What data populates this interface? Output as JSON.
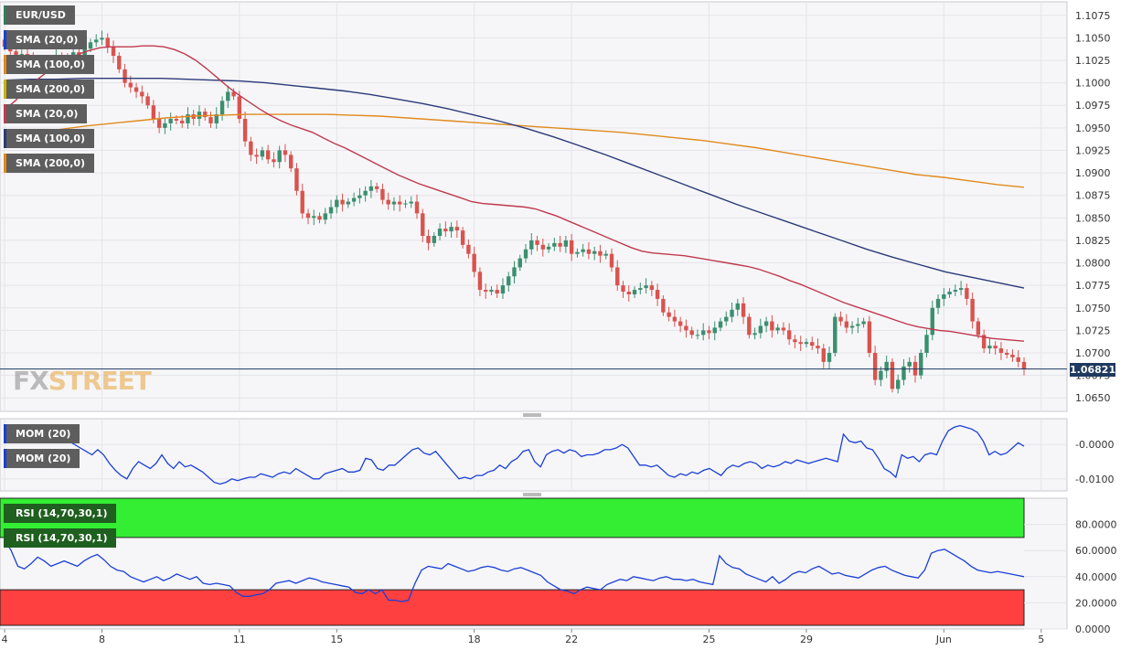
{
  "colors": {
    "bull": "#3b8f6f",
    "bear": "#d9534f",
    "sma20": "#c0394f",
    "sma100": "#2b3a78",
    "sma200": "#e08a1e",
    "mom": "#1a3fd6",
    "rsi": "#1a3fd6",
    "overbought": "#33ee33",
    "oversold": "#ff4040",
    "price_line": "#1f3a5f"
  },
  "price_tag": "1.06821",
  "logo": {
    "fx": "FX",
    "street": "STREET"
  },
  "legends": [
    {
      "label": "EUR/USD",
      "color": "#2e7d5b"
    },
    {
      "label": "SMA (20,0)",
      "color": "#1a3fd6"
    },
    {
      "label": "SMA (100,0)",
      "color": "#e08a1e"
    },
    {
      "label": "SMA (200,0)",
      "color": "#c8b400"
    },
    {
      "label": "SMA (20,0)",
      "color": "#c0394f"
    },
    {
      "label": "SMA (100,0)",
      "color": "#2b3a78"
    },
    {
      "label": "SMA (200,0)",
      "color": "#e08a1e"
    }
  ],
  "mom_legends": [
    {
      "label": "MOM (20)",
      "color": "#1a3fd6"
    },
    {
      "label": "MOM (20)",
      "color": "#1a3fd6"
    }
  ],
  "rsi_legends": [
    {
      "label": "RSI (14,70,30,1)",
      "color": "#1f5f1f"
    },
    {
      "label": "RSI (14,70,30,1)",
      "color": "#1f5f1f"
    }
  ],
  "chart_data": {
    "type": "candlestick",
    "symbol": "EUR/USD",
    "current_price": 1.06821,
    "price_axis": {
      "ylim": [
        1.0635,
        1.109
      ],
      "ticks": [
        "1.1075",
        "1.1050",
        "1.1025",
        "1.1000",
        "1.0975",
        "1.0950",
        "1.0925",
        "1.0900",
        "1.0875",
        "1.0850",
        "1.0825",
        "1.0800",
        "1.0775",
        "1.0750",
        "1.0725",
        "1.0700",
        "1.0675",
        "1.0650"
      ]
    },
    "x_ticks": [
      {
        "label": "4",
        "bar": 0
      },
      {
        "label": "8",
        "bar": 17
      },
      {
        "label": "11",
        "bar": 41
      },
      {
        "label": "15",
        "bar": 58
      },
      {
        "label": "18",
        "bar": 82
      },
      {
        "label": "22",
        "bar": 99
      },
      {
        "label": "25",
        "bar": 123
      },
      {
        "label": "29",
        "bar": 140
      },
      {
        "label": "Jun",
        "bar": 164
      },
      {
        "label": "5",
        "bar": 181
      }
    ],
    "grid": true,
    "close": [
      1.104,
      1.1035,
      1.1028,
      1.1032,
      1.103,
      1.1025,
      1.102,
      1.1018,
      1.1022,
      1.103,
      1.1027,
      1.1025,
      1.1034,
      1.103,
      1.1038,
      1.1045,
      1.1048,
      1.105,
      1.104,
      1.103,
      1.1015,
      1.1,
      1.0995,
      1.099,
      1.0985,
      1.0975,
      1.096,
      1.095,
      1.0955,
      1.096,
      1.0958,
      1.0955,
      1.0965,
      1.096,
      1.0968,
      1.0962,
      1.0955,
      1.0965,
      1.098,
      1.099,
      1.0985,
      1.096,
      1.0935,
      1.092,
      1.0918,
      1.0925,
      1.0915,
      1.0912,
      1.0925,
      1.092,
      1.0905,
      1.088,
      1.0855,
      1.085,
      1.0852,
      1.0848,
      1.0855,
      1.0862,
      1.087,
      1.0865,
      1.0868,
      1.0872,
      1.0875,
      1.088,
      1.0885,
      1.0882,
      1.087,
      1.0865,
      1.0868,
      1.0865,
      1.0866,
      1.0868,
      1.0855,
      1.083,
      1.0822,
      1.083,
      1.0838,
      1.0835,
      1.084,
      1.0836,
      1.082,
      1.081,
      1.079,
      1.077,
      1.0768,
      1.077,
      1.0766,
      1.0775,
      1.0785,
      1.0795,
      1.0805,
      1.0815,
      1.0825,
      1.082,
      1.0815,
      1.0818,
      1.0822,
      1.0818,
      1.0825,
      1.081,
      1.0812,
      1.0815,
      1.081,
      1.0813,
      1.0808,
      1.081,
      1.0795,
      1.0775,
      1.0768,
      1.0765,
      1.077,
      1.0772,
      1.0775,
      1.077,
      1.076,
      1.0745,
      1.074,
      1.0735,
      1.073,
      1.0725,
      1.072,
      1.072,
      1.0725,
      1.0722,
      1.0728,
      1.0735,
      1.074,
      1.0748,
      1.0755,
      1.074,
      1.072,
      1.0722,
      1.073,
      1.0735,
      1.0725,
      1.0728,
      1.0725,
      1.0715,
      1.0712,
      1.071,
      1.0712,
      1.0708,
      1.0705,
      1.069,
      1.07,
      1.074,
      1.0735,
      1.0728,
      1.073,
      1.0732,
      1.0735,
      1.07,
      1.067,
      1.068,
      1.069,
      1.066,
      1.067,
      1.0685,
      1.069,
      1.0675,
      1.07,
      1.072,
      1.075,
      1.076,
      1.0765,
      1.0768,
      1.077,
      1.0772,
      1.076,
      1.0735,
      1.072,
      1.0705,
      1.0708,
      1.0705,
      1.07,
      1.0698,
      1.0695,
      1.069,
      1.0682
    ],
    "sma20": [
      1.097,
      1.098,
      1.0992,
      1.1003,
      1.1012,
      1.102,
      1.1027,
      1.1032,
      1.1036,
      1.1039,
      1.104,
      1.104,
      1.104,
      1.1041,
      1.1041,
      1.104,
      1.1037,
      1.1032,
      1.1025,
      1.1016,
      1.1006,
      1.0996,
      1.0987,
      1.0979,
      1.0971,
      1.0964,
      1.0958,
      1.0953,
      1.0949,
      1.0945,
      1.0939,
      1.0933,
      1.0928,
      1.0922,
      1.0916,
      1.091,
      1.0904,
      1.0898,
      1.0893,
      1.0888,
      1.0884,
      1.088,
      1.0876,
      1.0872,
      1.0868,
      1.0866,
      1.0865,
      1.0864,
      1.0863,
      1.0862,
      1.086,
      1.0856,
      1.0852,
      1.0847,
      1.0842,
      1.0837,
      1.0832,
      1.0827,
      1.0822,
      1.0817,
      1.0813,
      1.0811,
      1.081,
      1.0809,
      1.0808,
      1.0806,
      1.0804,
      1.0802,
      1.08,
      1.0798,
      1.0796,
      1.0793,
      1.0789,
      1.0785,
      1.078,
      1.0776,
      1.0771,
      1.0766,
      1.0761,
      1.0756,
      1.0752,
      1.0748,
      1.0744,
      1.074,
      1.0736,
      1.0732,
      1.0729,
      1.0727,
      1.0725,
      1.0724,
      1.0722,
      1.072,
      1.0718,
      1.0716,
      1.0715,
      1.0714,
      1.0713
    ],
    "sma100": [
      1.1003,
      1.1004,
      1.1004,
      1.1005,
      1.1005,
      1.1005,
      1.1005,
      1.1004,
      1.1003,
      1.1002,
      1.1,
      1.0997,
      1.0994,
      1.0991,
      1.0987,
      1.0982,
      1.0977,
      1.0971,
      1.0964,
      1.0957,
      1.0949,
      1.094,
      1.093,
      1.092,
      1.0909,
      1.0898,
      1.0887,
      1.0876,
      1.0865,
      1.0855,
      1.0845,
      1.0835,
      1.0825,
      1.0815,
      1.0806,
      1.0798,
      1.079,
      1.0784,
      1.0778,
      1.0772
    ],
    "sma200": [
      1.094,
      1.0944,
      1.0948,
      1.0952,
      1.0955,
      1.0958,
      1.0961,
      1.0963,
      1.0964,
      1.0965,
      1.0965,
      1.0965,
      1.0965,
      1.0964,
      1.0963,
      1.0961,
      1.0959,
      1.0957,
      1.0955,
      1.0953,
      1.0951,
      1.0949,
      1.0947,
      1.0945,
      1.0942,
      1.0939,
      1.0936,
      1.0932,
      1.0928,
      1.0923,
      1.0918,
      1.0913,
      1.0908,
      1.0903,
      1.0898,
      1.0895,
      1.0891,
      1.0887,
      1.0884
    ],
    "momentum": {
      "ylim": [
        -0.0135,
        0.0075
      ],
      "ticks": [
        "-0.0000",
        "-0.0100"
      ],
      "values": [
        0.0055,
        0.005,
        0.004,
        0.0035,
        0.003,
        0.004,
        0.005,
        0.0045,
        0.0035,
        0.0025,
        0.002,
        0.001,
        0.0,
        -0.001,
        -0.002,
        -0.003,
        -0.0015,
        -0.003,
        -0.0055,
        -0.0075,
        -0.009,
        -0.01,
        -0.007,
        -0.005,
        -0.006,
        -0.007,
        -0.0055,
        -0.003,
        -0.0055,
        -0.007,
        -0.005,
        -0.0065,
        -0.006,
        -0.007,
        -0.008,
        -0.0095,
        -0.011,
        -0.0115,
        -0.011,
        -0.01,
        -0.0105,
        -0.01,
        -0.0095,
        -0.0095,
        -0.0085,
        -0.009,
        -0.0095,
        -0.0085,
        -0.008,
        -0.0085,
        -0.007,
        -0.008,
        -0.009,
        -0.01,
        -0.01,
        -0.0085,
        -0.008,
        -0.0075,
        -0.007,
        -0.008,
        -0.008,
        -0.0075,
        -0.004,
        -0.0045,
        -0.007,
        -0.0075,
        -0.006,
        -0.006,
        -0.0045,
        -0.003,
        -0.0015,
        -0.001,
        -0.0025,
        -0.003,
        -0.002,
        -0.004,
        -0.006,
        -0.008,
        -0.01,
        -0.0095,
        -0.01,
        -0.009,
        -0.009,
        -0.008,
        -0.0075,
        -0.006,
        -0.007,
        -0.005,
        -0.004,
        -0.002,
        -0.0015,
        -0.005,
        -0.0065,
        -0.003,
        -0.002,
        -0.0015,
        -0.0025,
        -0.0015,
        -0.002,
        -0.0035,
        -0.003,
        -0.003,
        -0.0025,
        -0.0015,
        -0.0015,
        -0.001,
        0.0,
        -0.001,
        -0.0035,
        -0.006,
        -0.006,
        -0.0065,
        -0.006,
        -0.0075,
        -0.009,
        -0.0095,
        -0.0085,
        -0.009,
        -0.008,
        -0.0085,
        -0.0075,
        -0.007,
        -0.008,
        -0.009,
        -0.007,
        -0.006,
        -0.0065,
        -0.0055,
        -0.005,
        -0.0055,
        -0.007,
        -0.006,
        -0.0065,
        -0.006,
        -0.005,
        -0.0055,
        -0.0045,
        -0.005,
        -0.0055,
        -0.005,
        -0.0045,
        -0.004,
        -0.0045,
        -0.005,
        0.003,
        0.001,
        0.0005,
        0.001,
        -0.001,
        -0.0015,
        -0.004,
        -0.007,
        -0.008,
        -0.0095,
        -0.003,
        -0.004,
        -0.0035,
        -0.005,
        -0.003,
        -0.0025,
        -0.003,
        0.001,
        0.004,
        0.005,
        0.0055,
        0.005,
        0.0045,
        0.0035,
        0.001,
        -0.003,
        -0.002,
        -0.003,
        -0.0025,
        -0.001,
        0.0005,
        -0.0005
      ]
    },
    "rsi": {
      "ylim": [
        0,
        100
      ],
      "overbought": 70,
      "oversold": 30,
      "ticks": [
        "80.0000",
        "60.0000",
        "40.0000",
        "20.0000",
        "0.0000"
      ],
      "values": [
        68,
        60,
        48,
        46,
        50,
        55,
        52,
        48,
        50,
        52,
        50,
        48,
        52,
        55,
        57,
        53,
        48,
        45,
        44,
        40,
        38,
        36,
        38,
        40,
        37,
        39,
        42,
        40,
        38,
        40,
        35,
        34,
        35,
        34,
        33,
        28,
        25,
        25,
        26,
        27,
        30,
        35,
        36,
        37,
        35,
        37,
        39,
        38,
        36,
        35,
        34,
        33,
        32,
        28,
        27,
        30,
        27,
        30,
        22,
        22,
        21,
        22,
        35,
        45,
        48,
        47,
        46,
        50,
        48,
        46,
        44,
        45,
        47,
        48,
        47,
        45,
        44,
        46,
        47,
        45,
        43,
        41,
        36,
        33,
        30,
        29,
        27,
        30,
        32,
        31,
        30,
        34,
        36,
        38,
        37,
        40,
        39,
        38,
        37,
        39,
        40,
        38,
        38,
        37,
        38,
        36,
        35,
        34,
        56,
        50,
        47,
        46,
        42,
        40,
        38,
        36,
        40,
        35,
        38,
        42,
        44,
        43,
        46,
        48,
        45,
        42,
        43,
        41,
        40,
        39,
        42,
        45,
        47,
        48,
        45,
        43,
        41,
        40,
        39,
        45,
        58,
        60,
        61,
        58,
        55,
        52,
        48,
        45,
        44,
        43,
        44,
        43,
        42,
        41,
        40
      ]
    }
  }
}
